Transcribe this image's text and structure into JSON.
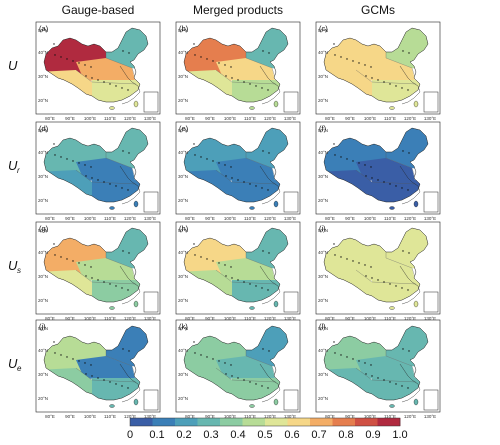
{
  "columns": [
    "Gauge-based",
    "Merged products",
    "GCMs"
  ],
  "rows": [
    {
      "symbol": "U",
      "sub": ""
    },
    {
      "symbol": "U",
      "sub": "r"
    },
    {
      "symbol": "U",
      "sub": "s"
    },
    {
      "symbol": "U",
      "sub": "e"
    }
  ],
  "panel_labels": [
    "(a)",
    "(b)",
    "(c)",
    "(d)",
    "(e)",
    "(f)",
    "(g)",
    "(h)",
    "(i)",
    "(j)",
    "(k)",
    "(l)"
  ],
  "lon_ticks": [
    "80°E",
    "90°E",
    "100°E",
    "110°E",
    "120°E",
    "130°E"
  ],
  "lat_ticks": [
    "50°N",
    "40°N",
    "30°N",
    "20°N"
  ],
  "colorbar": {
    "ticks": [
      "0",
      "0.1",
      "0.2",
      "0.3",
      "0.4",
      "0.5",
      "0.6",
      "0.7",
      "0.8",
      "0.9",
      "1.0"
    ],
    "colors": [
      "#3a5ea6",
      "#3b7fb7",
      "#4d9fb9",
      "#67b7b0",
      "#8ccca2",
      "#b7dc96",
      "#dfe698",
      "#f6d788",
      "#f3ad66",
      "#e57e4e",
      "#cf5043",
      "#b02a3f"
    ]
  },
  "panel_values": [
    {
      "panel": "(a)",
      "nw": 0.95,
      "ne": 0.32,
      "c": 0.72,
      "sw": 0.62,
      "s": 0.55
    },
    {
      "panel": "(b)",
      "nw": 0.8,
      "ne": 0.3,
      "c": 0.62,
      "sw": 0.58,
      "s": 0.42
    },
    {
      "panel": "(c)",
      "nw": 0.65,
      "ne": 0.45,
      "c": 0.6,
      "sw": 0.63,
      "s": 0.58
    },
    {
      "panel": "(d)",
      "nw": 0.28,
      "ne": 0.25,
      "c": 0.15,
      "sw": 0.18,
      "s": 0.14
    },
    {
      "panel": "(e)",
      "nw": 0.2,
      "ne": 0.18,
      "c": 0.1,
      "sw": 0.12,
      "s": 0.1
    },
    {
      "panel": "(f)",
      "nw": 0.12,
      "ne": 0.14,
      "c": 0.08,
      "sw": 0.08,
      "s": 0.08
    },
    {
      "panel": "(g)",
      "nw": 0.72,
      "ne": 0.28,
      "c": 0.45,
      "sw": 0.5,
      "s": 0.4
    },
    {
      "panel": "(h)",
      "nw": 0.65,
      "ne": 0.28,
      "c": 0.42,
      "sw": 0.48,
      "s": 0.3
    },
    {
      "panel": "(i)",
      "nw": 0.58,
      "ne": 0.5,
      "c": 0.55,
      "sw": 0.58,
      "s": 0.53
    },
    {
      "panel": "(j)",
      "nw": 0.45,
      "ne": 0.12,
      "c": 0.1,
      "sw": 0.35,
      "s": 0.25
    },
    {
      "panel": "(k)",
      "nw": 0.4,
      "ne": 0.2,
      "c": 0.3,
      "sw": 0.38,
      "s": 0.35
    },
    {
      "panel": "(l)",
      "nw": 0.35,
      "ne": 0.32,
      "c": 0.3,
      "sw": 0.28,
      "s": 0.3
    }
  ]
}
